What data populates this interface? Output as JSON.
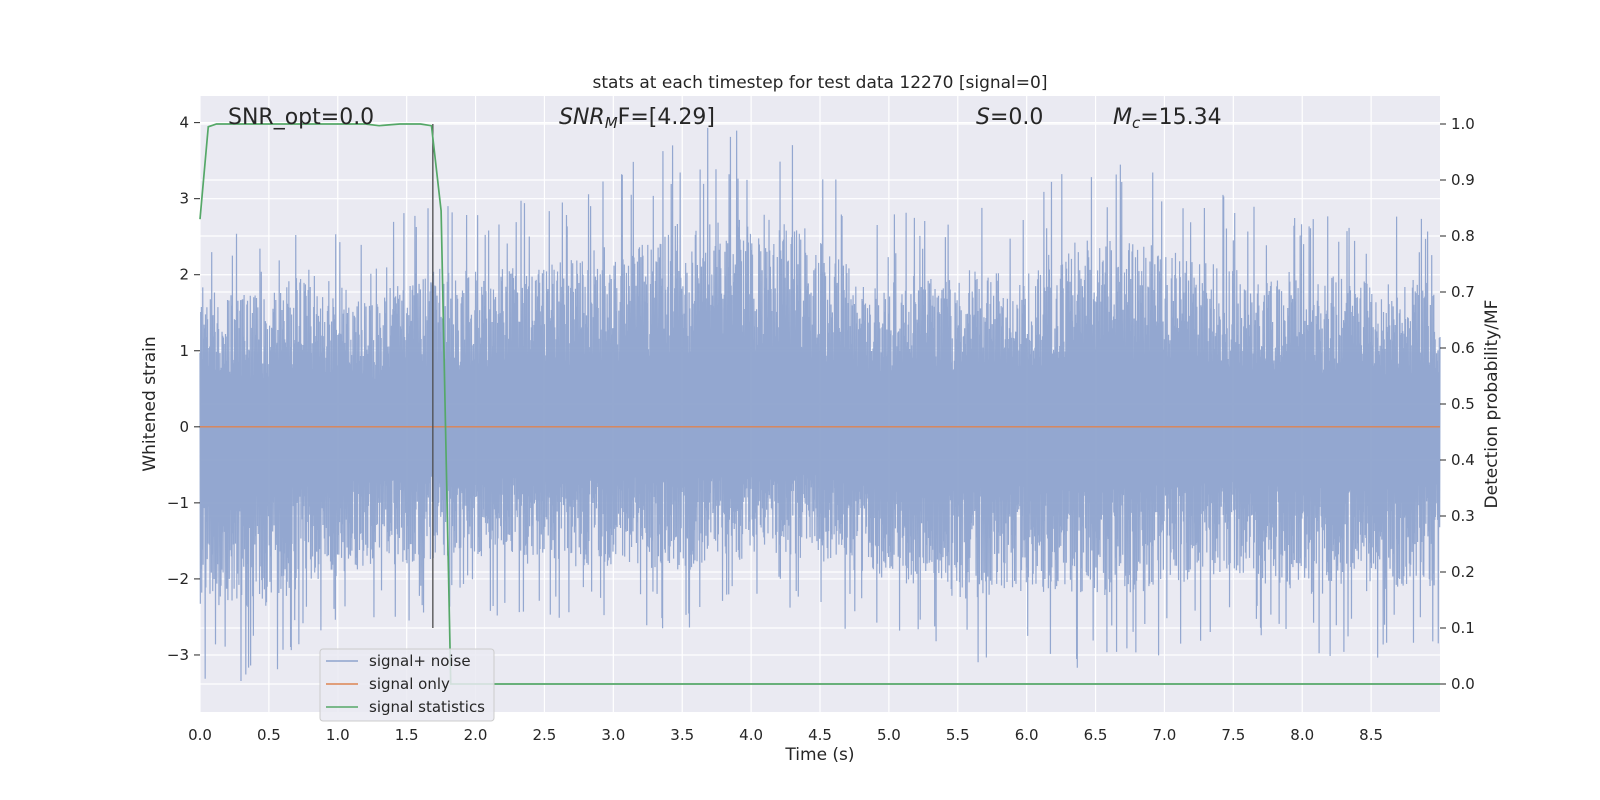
{
  "chart_data": {
    "type": "line",
    "title": "stats at each timestep for test data 12270 [signal=0]",
    "xlabel": "Time (s)",
    "ylabel": "Whitened strain",
    "y2label": "Detection probability/MF",
    "xlim": [
      0.0,
      9.0
    ],
    "ylim": [
      -3.75,
      4.35
    ],
    "y2lim": [
      -0.05,
      1.05
    ],
    "x_ticks": [
      0.0,
      0.5,
      1.0,
      1.5,
      2.0,
      2.5,
      3.0,
      3.5,
      4.0,
      4.5,
      5.0,
      5.5,
      6.0,
      6.5,
      7.0,
      7.5,
      8.0,
      8.5
    ],
    "x_tick_labels": [
      "0.0",
      "0.5",
      "1.0",
      "1.5",
      "2.0",
      "2.5",
      "3.0",
      "3.5",
      "4.0",
      "4.5",
      "5.0",
      "5.5",
      "6.0",
      "6.5",
      "7.0",
      "7.5",
      "8.0",
      "8.5"
    ],
    "y_ticks": [
      -3,
      -2,
      -1,
      0,
      1,
      2,
      3,
      4
    ],
    "y_tick_labels": [
      "−3",
      "−2",
      "−1",
      "0",
      "1",
      "2",
      "3",
      "4"
    ],
    "y2_ticks": [
      0.0,
      0.1,
      0.2,
      0.3,
      0.4,
      0.5,
      0.6,
      0.7,
      0.8,
      0.9,
      1.0
    ],
    "y2_tick_labels": [
      "0.0",
      "0.1",
      "0.2",
      "0.3",
      "0.4",
      "0.5",
      "0.6",
      "0.7",
      "0.8",
      "0.9",
      "1.0"
    ],
    "grid": true,
    "legend_position": "lower-left",
    "annotations": {
      "snr_opt": "SNR_opt=0.0",
      "snr_mf_base": "SNR",
      "snr_mf_sub": "M",
      "snr_mf_rest": "F=[4.29]",
      "s_label": "S",
      "s_rest": "=0.0",
      "mc_base": "M",
      "mc_sub": "c",
      "mc_rest": "=15.34"
    },
    "series": [
      {
        "name": "signal+ noise",
        "color": "#8ea3cd",
        "axis": "left",
        "style": "dense-noise",
        "envelope_peaks": [
          [
            0.0,
            2.65,
            -3.35
          ],
          [
            0.5,
            2.5,
            -3.4
          ],
          [
            0.8,
            3.05,
            -2.9
          ],
          [
            1.25,
            2.3,
            -2.7
          ],
          [
            1.5,
            3.0,
            -2.6
          ],
          [
            1.9,
            3.0,
            -2.4
          ],
          [
            2.4,
            3.0,
            -2.6
          ],
          [
            3.7,
            4.0,
            -2.7
          ],
          [
            4.25,
            4.0,
            -2.4
          ],
          [
            4.9,
            2.75,
            -2.8
          ],
          [
            5.55,
            2.95,
            -3.25
          ],
          [
            5.95,
            2.85,
            -3.1
          ],
          [
            6.3,
            3.5,
            -3.25
          ],
          [
            6.85,
            3.5,
            -3.1
          ],
          [
            7.5,
            3.0,
            -2.7
          ],
          [
            7.95,
            2.9,
            -3.2
          ],
          [
            8.55,
            2.75,
            -3.1
          ],
          [
            9.0,
            2.8,
            -3.0
          ]
        ]
      },
      {
        "name": "signal only",
        "color": "#dd8452",
        "axis": "left",
        "x": [
          0.0,
          9.0
        ],
        "y": [
          0.0,
          0.0
        ]
      },
      {
        "name": "signal statistics",
        "color": "#55a868",
        "axis": "right",
        "x": [
          0.0,
          0.06,
          0.12,
          0.25,
          0.5,
          0.75,
          1.0,
          1.2,
          1.3,
          1.45,
          1.6,
          1.68,
          1.75,
          1.82,
          1.9,
          2.0,
          3.0,
          4.0,
          5.0,
          6.0,
          7.0,
          8.0,
          9.0
        ],
        "y": [
          0.83,
          0.995,
          1.0,
          1.0,
          1.0,
          1.0,
          1.0,
          1.0,
          0.997,
          1.0,
          1.0,
          0.997,
          0.845,
          0.0,
          0.0,
          0.0,
          0.0,
          0.0,
          0.0,
          0.0,
          0.0,
          0.0,
          0.0
        ]
      }
    ],
    "marker_line": {
      "x": 1.69,
      "y_from": 1.0,
      "y_to": 0.1,
      "axis": "right",
      "color": "#4c4c4c"
    }
  }
}
